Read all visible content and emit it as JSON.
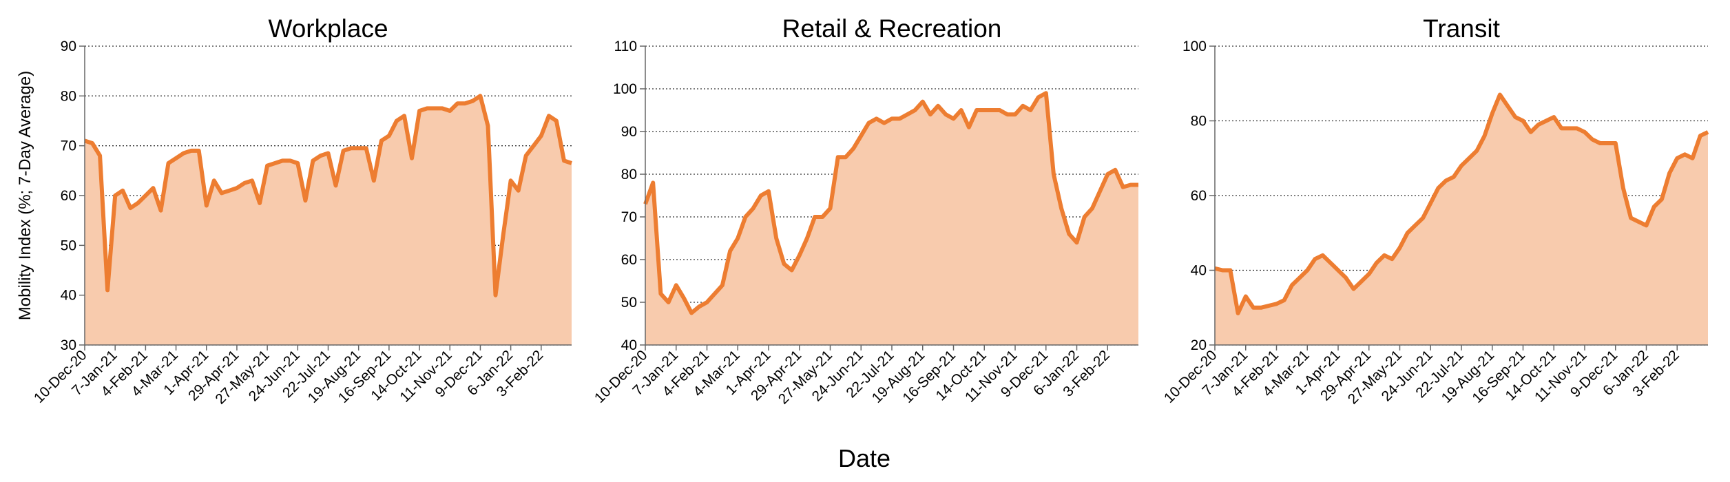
{
  "chart_data": [
    {
      "type": "area",
      "title": "Workplace",
      "ylabel": "Mobility Index (%; 7-Day Average)",
      "categories": [
        "10-Dec-20",
        null,
        null,
        null,
        "7-Jan-21",
        null,
        null,
        null,
        "4-Feb-21",
        null,
        null,
        null,
        "4-Mar-21",
        null,
        null,
        null,
        "1-Apr-21",
        null,
        null,
        null,
        "29-Apr-21",
        null,
        null,
        null,
        "27-May-21",
        null,
        null,
        null,
        "24-Jun-21",
        null,
        null,
        null,
        "22-Jul-21",
        null,
        null,
        null,
        "19-Aug-21",
        null,
        null,
        null,
        "16-Sep-21",
        null,
        null,
        null,
        "14-Oct-21",
        null,
        null,
        null,
        "11-Nov-21",
        null,
        null,
        null,
        "9-Dec-21",
        null,
        null,
        null,
        "6-Jan-22",
        null,
        null,
        null,
        "3-Feb-22",
        null,
        null,
        null,
        null
      ],
      "series": [
        {
          "name": "Workplace",
          "color": "#ed7d31",
          "fill": "#f8cbad",
          "values": [
            71,
            70.5,
            68,
            41,
            60,
            61,
            57.5,
            58.5,
            60,
            61.5,
            57,
            66.5,
            67.5,
            68.5,
            69,
            69,
            58,
            63,
            60.5,
            61,
            61.5,
            62.5,
            63,
            58.5,
            66,
            66.5,
            67,
            67,
            66.5,
            59,
            67,
            68,
            68.5,
            62,
            69,
            69.5,
            69.5,
            69.5,
            63,
            71,
            72,
            75,
            76,
            67.5,
            77,
            77.5,
            77.5,
            77.5,
            77,
            78.5,
            78.5,
            79,
            80,
            74,
            40,
            52,
            63,
            61,
            68,
            70,
            72,
            76,
            75,
            67,
            66.5
          ]
        }
      ],
      "ylim": [
        30,
        90
      ],
      "yticks": [
        30,
        40,
        50,
        60,
        70,
        80,
        90
      ],
      "grid": true
    },
    {
      "type": "area",
      "title": "Retail & Recreation",
      "xlabel": "Date",
      "categories": [
        "10-Dec-20",
        null,
        null,
        null,
        "7-Jan-21",
        null,
        null,
        null,
        "4-Feb-21",
        null,
        null,
        null,
        "4-Mar-21",
        null,
        null,
        null,
        "1-Apr-21",
        null,
        null,
        null,
        "29-Apr-21",
        null,
        null,
        null,
        "27-May-21",
        null,
        null,
        null,
        "24-Jun-21",
        null,
        null,
        null,
        "22-Jul-21",
        null,
        null,
        null,
        "19-Aug-21",
        null,
        null,
        null,
        "16-Sep-21",
        null,
        null,
        null,
        "14-Oct-21",
        null,
        null,
        null,
        "11-Nov-21",
        null,
        null,
        null,
        "9-Dec-21",
        null,
        null,
        null,
        "6-Jan-22",
        null,
        null,
        null,
        "3-Feb-22",
        null,
        null,
        null,
        null
      ],
      "series": [
        {
          "name": "Retail & Recreation",
          "color": "#ed7d31",
          "fill": "#f8cbad",
          "values": [
            73,
            78,
            52,
            50,
            54,
            51,
            47.5,
            49,
            50,
            52,
            54,
            62,
            65,
            70,
            72,
            75,
            76,
            65,
            59,
            57.5,
            61,
            65,
            70,
            70,
            72,
            84,
            84,
            86,
            89,
            92,
            93,
            92,
            93,
            93,
            94,
            95,
            97,
            94,
            96,
            94,
            93,
            95,
            91,
            95,
            95,
            95,
            95,
            94,
            94,
            96,
            95,
            98,
            99,
            80,
            72,
            66,
            64,
            70,
            72,
            76,
            80,
            81,
            77,
            77.5,
            77.5
          ]
        }
      ],
      "ylim": [
        40,
        110
      ],
      "yticks": [
        40,
        50,
        60,
        70,
        80,
        90,
        100,
        110
      ],
      "grid": true
    },
    {
      "type": "area",
      "title": "Transit",
      "categories": [
        "10-Dec-20",
        null,
        null,
        null,
        "7-Jan-21",
        null,
        null,
        null,
        "4-Feb-21",
        null,
        null,
        null,
        "4-Mar-21",
        null,
        null,
        null,
        "1-Apr-21",
        null,
        null,
        null,
        "29-Apr-21",
        null,
        null,
        null,
        "27-May-21",
        null,
        null,
        null,
        "24-Jun-21",
        null,
        null,
        null,
        "22-Jul-21",
        null,
        null,
        null,
        "19-Aug-21",
        null,
        null,
        null,
        "16-Sep-21",
        null,
        null,
        null,
        "14-Oct-21",
        null,
        null,
        null,
        "11-Nov-21",
        null,
        null,
        null,
        "9-Dec-21",
        null,
        null,
        null,
        "6-Jan-22",
        null,
        null,
        null,
        "3-Feb-22",
        null,
        null,
        null,
        null
      ],
      "series": [
        {
          "name": "Transit",
          "color": "#ed7d31",
          "fill": "#f8cbad",
          "values": [
            40.5,
            40,
            40,
            28.5,
            33,
            30,
            30,
            30.5,
            31,
            32,
            36,
            38,
            40,
            43,
            44,
            42,
            40,
            38,
            35,
            37,
            39,
            42,
            44,
            43,
            46,
            50,
            52,
            54,
            58,
            62,
            64,
            65,
            68,
            70,
            72,
            76,
            82,
            87,
            84,
            81,
            80,
            77,
            79,
            80,
            81,
            78,
            78,
            78,
            77,
            75,
            74,
            74,
            74,
            62,
            54,
            53,
            52,
            57,
            59,
            66,
            70,
            71,
            70,
            76,
            77
          ]
        }
      ],
      "ylim": [
        20,
        100
      ],
      "yticks": [
        20,
        40,
        60,
        80,
        100
      ],
      "grid": true
    }
  ]
}
